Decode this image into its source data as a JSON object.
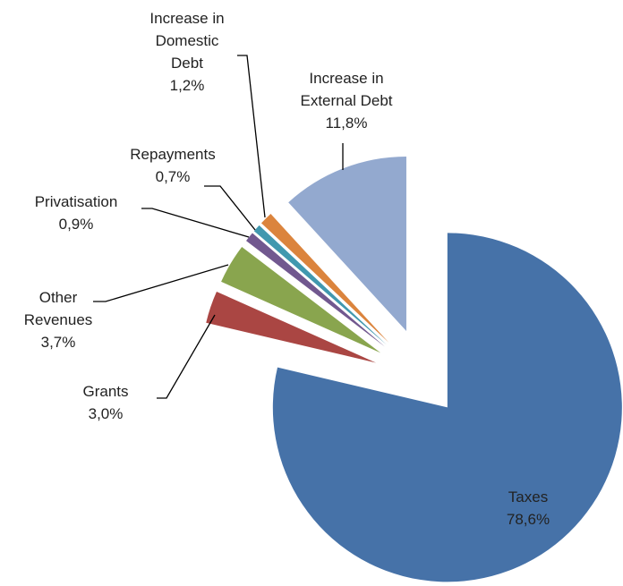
{
  "chart_data": {
    "type": "pie",
    "categories": [
      "Taxes",
      "Grants",
      "Other Revenues",
      "Privatisation",
      "Repayments",
      "Increase in Domestic Debt",
      "Increase in External Debt"
    ],
    "values": [
      78.6,
      3.0,
      3.7,
      0.9,
      0.7,
      1.2,
      11.8
    ],
    "value_labels": [
      "78,6%",
      "3,0%",
      "3,7%",
      "0,9%",
      "0,7%",
      "1,2%",
      "11,8%"
    ],
    "colors": [
      "#4672a8",
      "#aa4643",
      "#89a54e",
      "#71588f",
      "#4198af",
      "#db843d",
      "#93a9cf"
    ]
  }
}
